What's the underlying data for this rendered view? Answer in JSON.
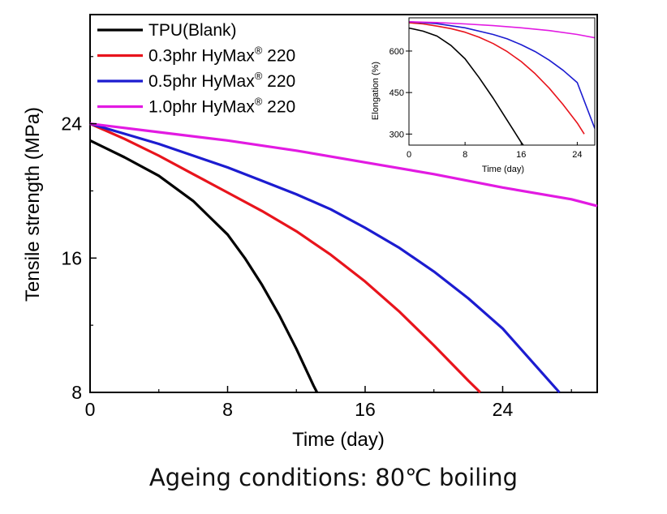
{
  "caption": "Ageing conditions: 80℃ boiling",
  "colors": {
    "TPU(Blank)": "#000000",
    "0.3phr": "#e8141c",
    "0.5phr": "#1c1cd0",
    "1.0phr": "#e21ae2"
  },
  "chart_data": [
    {
      "type": "line",
      "title": "",
      "xlabel": "Time (day)",
      "ylabel": "Tensile strength (MPa)",
      "xlim": [
        0,
        29.5
      ],
      "ylim": [
        8,
        30.5
      ],
      "xticks": [
        0,
        8,
        16,
        24
      ],
      "yticks": [
        8,
        16,
        24
      ],
      "legend": "top-left",
      "series": [
        {
          "name": "TPU(Blank)",
          "legend_text": "TPU(Blank)",
          "color": "#000000",
          "x": [
            0,
            2,
            4,
            6,
            8,
            9,
            10,
            11,
            12,
            12.5,
            13,
            13.2
          ],
          "y": [
            23.0,
            22.0,
            20.9,
            19.4,
            17.4,
            16.0,
            14.4,
            12.6,
            10.6,
            9.5,
            8.4,
            8.0
          ]
        },
        {
          "name": "0.3phr HyMax 220",
          "legend_text": "0.3phr HyMax",
          "legend_sup": "®",
          "legend_tail": " 220",
          "color": "#e8141c",
          "x": [
            0,
            2,
            4,
            6,
            8,
            10,
            12,
            14,
            16,
            18,
            20,
            22,
            22.7
          ],
          "y": [
            24.0,
            23.1,
            22.1,
            21.0,
            19.9,
            18.8,
            17.6,
            16.2,
            14.6,
            12.8,
            10.8,
            8.7,
            8.0
          ]
        },
        {
          "name": "0.5phr HyMax 220",
          "legend_text": "0.5phr HyMax",
          "legend_sup": "®",
          "legend_tail": " 220",
          "color": "#1c1cd0",
          "x": [
            0,
            2,
            4,
            6,
            8,
            10,
            12,
            14,
            16,
            18,
            20,
            22,
            24,
            26,
            27.3
          ],
          "y": [
            24.0,
            23.4,
            22.8,
            22.1,
            21.4,
            20.6,
            19.8,
            18.9,
            17.8,
            16.6,
            15.2,
            13.6,
            11.8,
            9.5,
            8.0
          ]
        },
        {
          "name": "1.0phr HyMax 220",
          "legend_text": "1.0phr HyMax",
          "legend_sup": "®",
          "legend_tail": " 220",
          "color": "#e21ae2",
          "x": [
            0,
            4,
            8,
            12,
            16,
            20,
            24,
            28,
            29.5
          ],
          "y": [
            24.0,
            23.5,
            23.0,
            22.4,
            21.7,
            21.0,
            20.2,
            19.5,
            19.1
          ]
        }
      ]
    },
    {
      "type": "line",
      "title": "",
      "xlabel": "Time (day)",
      "ylabel": "Elongation (%)",
      "xlim": [
        0,
        26.5
      ],
      "ylim": [
        260,
        720
      ],
      "xticks": [
        0,
        8,
        16,
        24
      ],
      "yticks": [
        300,
        450,
        600
      ],
      "series": [
        {
          "name": "TPU(Blank)",
          "color": "#000000",
          "x": [
            0,
            2,
            4,
            6,
            8,
            10,
            12,
            14,
            16,
            17.4
          ],
          "y": [
            683,
            672,
            654,
            620,
            572,
            504,
            430,
            350,
            270,
            223
          ]
        },
        {
          "name": "0.3phr HyMax 220",
          "color": "#e8141c",
          "x": [
            0,
            2,
            4,
            6,
            8,
            10,
            12,
            14,
            16,
            18,
            20,
            22,
            24,
            25
          ],
          "y": [
            702,
            698,
            690,
            681,
            668,
            650,
            627,
            598,
            562,
            518,
            466,
            406,
            340,
            300
          ]
        },
        {
          "name": "0.5phr HyMax 220",
          "color": "#1c1cd0",
          "x": [
            0,
            4,
            8,
            12,
            14,
            16,
            18,
            20,
            22,
            24,
            26.5
          ],
          "y": [
            706,
            699,
            684,
            660,
            644,
            623,
            598,
            567,
            530,
            486,
            320
          ]
        },
        {
          "name": "1.0phr HyMax 220",
          "color": "#e21ae2",
          "x": [
            0,
            4,
            8,
            12,
            16,
            20,
            24,
            26.5
          ],
          "y": [
            706,
            703,
            698,
            692,
            684,
            674,
            660,
            648
          ]
        }
      ]
    }
  ]
}
